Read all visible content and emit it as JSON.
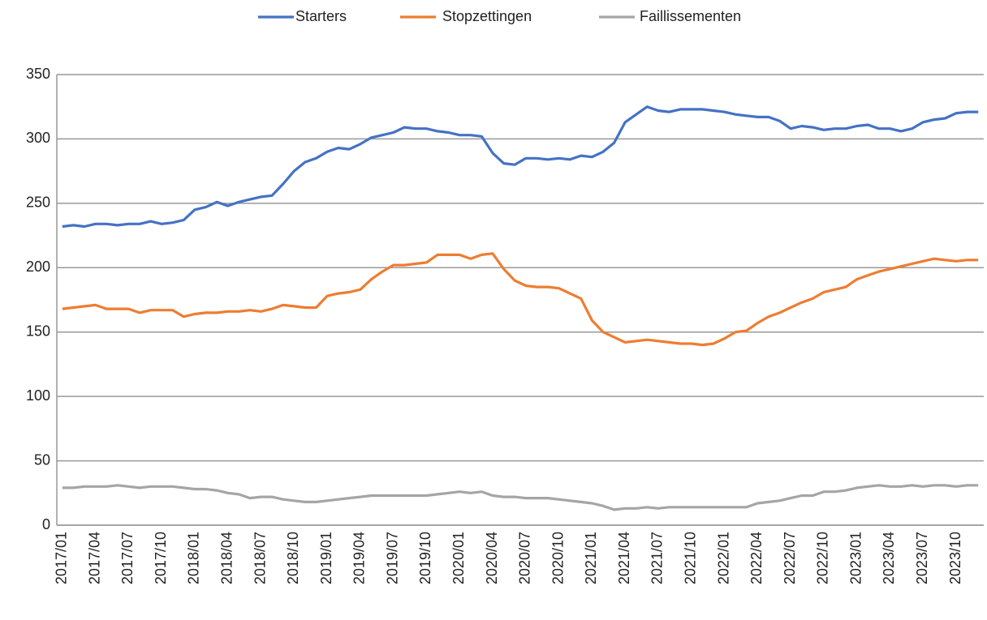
{
  "chart_data": {
    "type": "line",
    "categories": [
      "2017/01",
      null,
      null,
      "2017/04",
      null,
      null,
      "2017/07",
      null,
      null,
      "2017/10",
      null,
      null,
      "2018/01",
      null,
      null,
      "2018/04",
      null,
      null,
      "2018/07",
      null,
      null,
      "2018/10",
      null,
      null,
      "2019/01",
      null,
      null,
      "2019/04",
      null,
      null,
      "2019/07",
      null,
      null,
      "2019/10",
      null,
      null,
      "2020/01",
      null,
      null,
      "2020/04",
      null,
      null,
      "2020/07",
      null,
      null,
      "2020/10",
      null,
      null,
      "2021/01",
      null,
      null,
      "2021/04",
      null,
      null,
      "2021/07",
      null,
      null,
      "2021/10",
      null,
      null,
      "2022/01",
      null,
      null,
      "2022/04",
      null,
      null,
      "2022/07",
      null,
      null,
      "2022/10",
      null,
      null,
      "2023/01",
      null,
      null,
      "2023/04",
      null,
      null,
      "2023/07",
      null,
      null,
      "2023/10",
      null,
      null
    ],
    "series": [
      {
        "name": "Starters",
        "color": "#4472c4",
        "values": [
          232,
          233,
          232,
          234,
          234,
          233,
          234,
          234,
          236,
          234,
          235,
          237,
          245,
          247,
          251,
          248,
          251,
          253,
          255,
          256,
          265,
          275,
          282,
          285,
          290,
          293,
          292,
          296,
          301,
          303,
          305,
          309,
          308,
          308,
          306,
          305,
          303,
          303,
          302,
          289,
          281,
          280,
          285,
          285,
          284,
          285,
          284,
          287,
          286,
          290,
          297,
          313,
          319,
          325,
          322,
          321,
          323,
          323,
          323,
          322,
          321,
          319,
          318,
          317,
          317,
          314,
          308,
          310,
          309,
          307,
          308,
          308,
          310,
          311,
          308,
          308,
          306,
          308,
          313,
          315,
          316,
          320,
          321,
          321
        ]
      },
      {
        "name": "Stopzettingen",
        "color": "#ed7d31",
        "values": [
          168,
          169,
          170,
          171,
          168,
          168,
          168,
          165,
          167,
          167,
          167,
          162,
          164,
          165,
          165,
          166,
          166,
          167,
          166,
          168,
          171,
          170,
          169,
          169,
          178,
          180,
          181,
          183,
          191,
          197,
          202,
          202,
          203,
          204,
          210,
          210,
          210,
          207,
          210,
          211,
          199,
          190,
          186,
          185,
          185,
          184,
          180,
          176,
          159,
          150,
          146,
          142,
          143,
          144,
          143,
          142,
          141,
          141,
          140,
          141,
          145,
          150,
          151,
          157,
          162,
          165,
          169,
          173,
          176,
          181,
          183,
          185,
          191,
          194,
          197,
          199,
          201,
          203,
          205,
          207,
          206,
          205,
          206,
          206
        ]
      },
      {
        "name": "Faillissementen",
        "color": "#a5a5a5",
        "values": [
          29,
          29,
          30,
          30,
          30,
          31,
          30,
          29,
          30,
          30,
          30,
          29,
          28,
          28,
          27,
          25,
          24,
          21,
          22,
          22,
          20,
          19,
          18,
          18,
          19,
          20,
          21,
          22,
          23,
          23,
          23,
          23,
          23,
          23,
          24,
          25,
          26,
          25,
          26,
          23,
          22,
          22,
          21,
          21,
          21,
          20,
          19,
          18,
          17,
          15,
          12,
          13,
          13,
          14,
          13,
          14,
          14,
          14,
          14,
          14,
          14,
          14,
          14,
          17,
          18,
          19,
          21,
          23,
          23,
          26,
          26,
          27,
          29,
          30,
          31,
          30,
          30,
          31,
          30,
          31,
          31,
          30,
          31,
          31
        ]
      }
    ],
    "ylim": [
      0,
      350
    ],
    "yticks": [
      0,
      50,
      100,
      150,
      200,
      250,
      300,
      350
    ],
    "grid": true,
    "legend": "top"
  }
}
